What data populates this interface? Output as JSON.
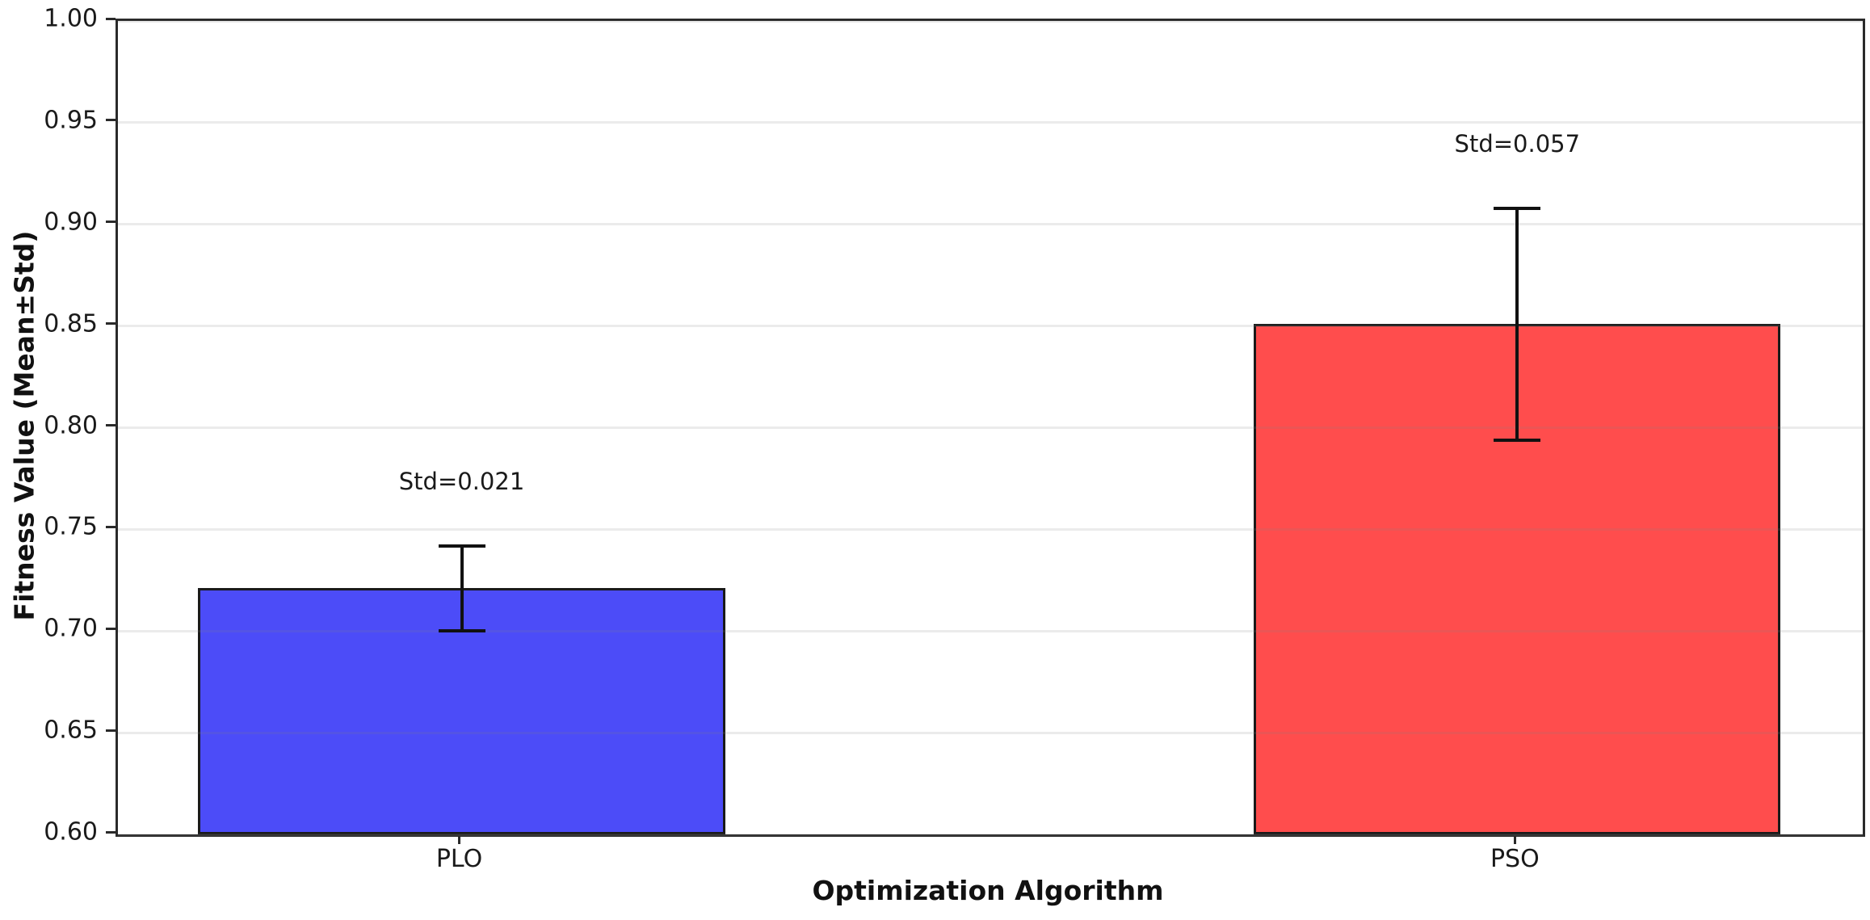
{
  "chart_data": {
    "type": "bar",
    "title": "",
    "xlabel": "Optimization Algorithm",
    "ylabel": "Fitness Value (Mean±Std)",
    "categories": [
      "PLO",
      "PSO"
    ],
    "values": [
      0.721,
      0.851
    ],
    "errors": [
      0.021,
      0.057
    ],
    "annotations": [
      "Std=0.021",
      "Std=0.057"
    ],
    "bar_colors": [
      "#4C4CF8",
      "#FF4D4D"
    ],
    "bar_edge_color": "#1a1a1a",
    "error_bar_color": "#111111",
    "ylim": [
      0.6,
      1.0
    ],
    "ytick_step": 0.05,
    "yticks": [
      "0.60",
      "0.65",
      "0.70",
      "0.75",
      "0.80",
      "0.85",
      "0.90",
      "0.95",
      "1.00"
    ],
    "grid": "horizontal-light",
    "legend": "none",
    "background": "#ffffff"
  }
}
